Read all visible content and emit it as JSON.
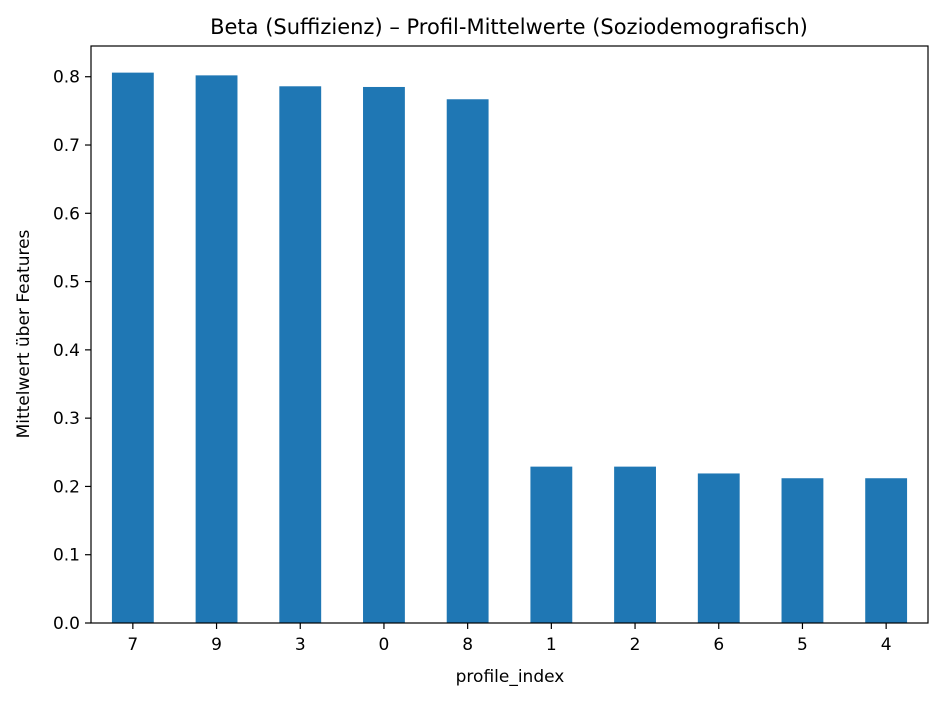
{
  "chart_data": {
    "type": "bar",
    "title": "Beta (Suffizienz) – Profil-Mittelwerte (Soziodemografisch)",
    "xlabel": "profile_index",
    "ylabel": "Mittelwert über Features",
    "categories": [
      "7",
      "9",
      "3",
      "0",
      "8",
      "1",
      "2",
      "6",
      "5",
      "4"
    ],
    "values": [
      0.806,
      0.802,
      0.786,
      0.785,
      0.767,
      0.229,
      0.229,
      0.219,
      0.212,
      0.212
    ],
    "ylim": [
      0,
      0.845
    ],
    "yticks": [
      "0.0",
      "0.1",
      "0.2",
      "0.3",
      "0.4",
      "0.5",
      "0.6",
      "0.7",
      "0.8"
    ],
    "grid": false,
    "bar_color": "#1f77b4"
  }
}
